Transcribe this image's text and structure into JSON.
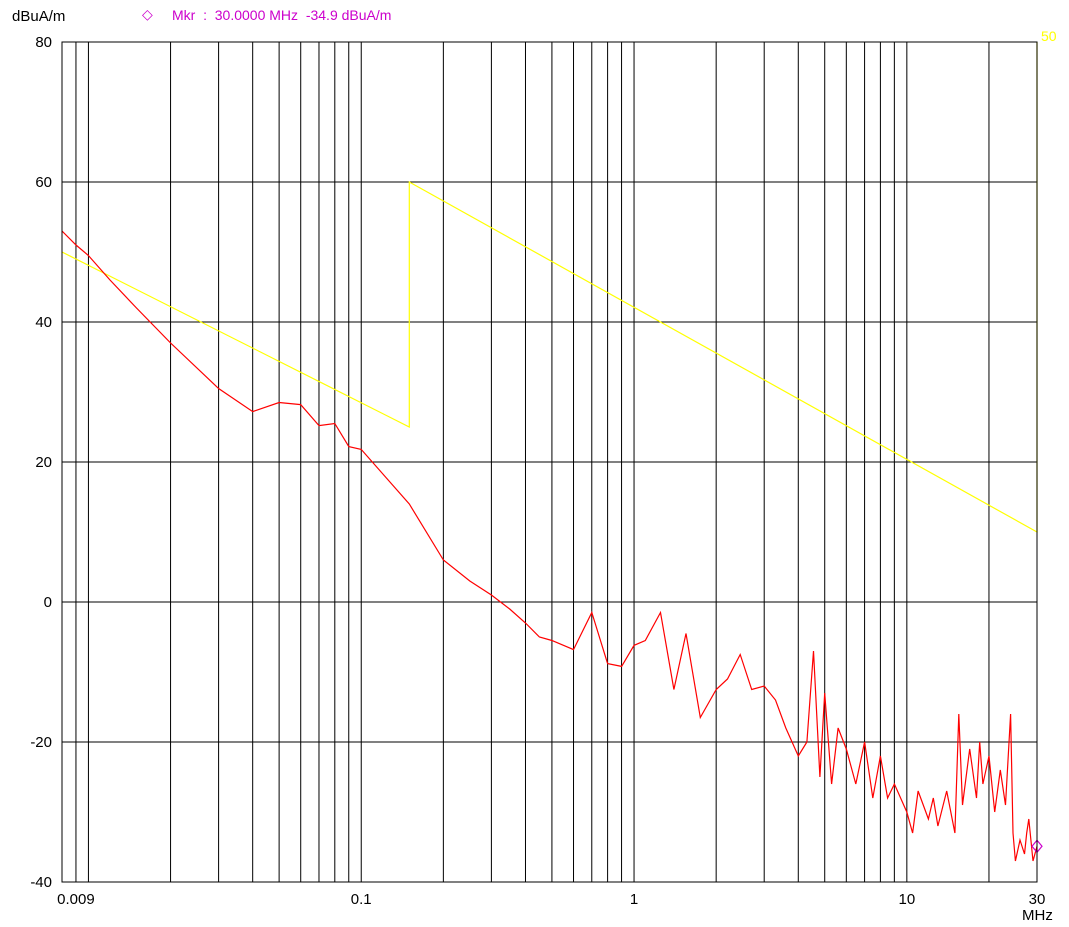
{
  "chart_data": {
    "type": "line",
    "y_unit_label": "dBuA/m",
    "x_unit_label": "MHz",
    "x_scale": "log",
    "xlim": [
      0.008,
      30
    ],
    "ylim": [
      -40,
      80
    ],
    "grid": true,
    "y_ticks": [
      80,
      60,
      40,
      20,
      0,
      -20,
      -40
    ],
    "x_tick_labels": [
      {
        "value": 0.009,
        "label": "0.009"
      },
      {
        "value": 0.1,
        "label": "0.1"
      },
      {
        "value": 1,
        "label": "1"
      },
      {
        "value": 10,
        "label": "10"
      },
      {
        "value": 30,
        "label": "30"
      }
    ],
    "marker": {
      "symbol": "◇",
      "text": "Mkr  :  30.0000 MHz  -34.9 dBuA/m",
      "x": 30,
      "y": -34.9,
      "color": "#cc00cc"
    },
    "series": [
      {
        "color": "#ffff00",
        "end_label": "50",
        "points": [
          [
            0.008,
            50
          ],
          [
            0.15,
            25
          ],
          [
            0.15,
            60
          ],
          [
            30,
            10
          ],
          [
            30,
            80
          ]
        ]
      },
      {
        "color": "#ff0000",
        "points": [
          [
            0.008,
            53
          ],
          [
            0.009,
            51
          ],
          [
            0.01,
            49.5
          ],
          [
            0.012,
            46
          ],
          [
            0.015,
            42
          ],
          [
            0.02,
            37
          ],
          [
            0.03,
            30.5
          ],
          [
            0.04,
            27.2
          ],
          [
            0.05,
            28.5
          ],
          [
            0.06,
            28.2
          ],
          [
            0.07,
            25.2
          ],
          [
            0.08,
            25.5
          ],
          [
            0.09,
            22.2
          ],
          [
            0.1,
            21.8
          ],
          [
            0.15,
            14
          ],
          [
            0.2,
            6
          ],
          [
            0.25,
            3
          ],
          [
            0.3,
            1
          ],
          [
            0.35,
            -1
          ],
          [
            0.4,
            -3
          ],
          [
            0.45,
            -5
          ],
          [
            0.5,
            -5.5
          ],
          [
            0.6,
            -6.8
          ],
          [
            0.7,
            -1.5
          ],
          [
            0.8,
            -8.8
          ],
          [
            0.9,
            -9.2
          ],
          [
            1.0,
            -6.2
          ],
          [
            1.1,
            -5.5
          ],
          [
            1.25,
            -1.5
          ],
          [
            1.4,
            -12.5
          ],
          [
            1.55,
            -4.5
          ],
          [
            1.75,
            -16.5
          ],
          [
            2.0,
            -12.5
          ],
          [
            2.2,
            -11
          ],
          [
            2.45,
            -7.5
          ],
          [
            2.7,
            -12.5
          ],
          [
            3.0,
            -12
          ],
          [
            3.3,
            -14
          ],
          [
            3.6,
            -18
          ],
          [
            4.0,
            -22
          ],
          [
            4.3,
            -20
          ],
          [
            4.55,
            -7
          ],
          [
            4.8,
            -25
          ],
          [
            5.0,
            -13
          ],
          [
            5.3,
            -26
          ],
          [
            5.6,
            -18
          ],
          [
            6.0,
            -21
          ],
          [
            6.5,
            -26
          ],
          [
            7.0,
            -20
          ],
          [
            7.5,
            -28
          ],
          [
            8.0,
            -22
          ],
          [
            8.5,
            -28
          ],
          [
            9.0,
            -26
          ],
          [
            10.0,
            -30
          ],
          [
            10.5,
            -33
          ],
          [
            11.0,
            -27
          ],
          [
            12.0,
            -31
          ],
          [
            12.5,
            -28
          ],
          [
            13.0,
            -32
          ],
          [
            14.0,
            -27
          ],
          [
            15.0,
            -33
          ],
          [
            15.5,
            -16
          ],
          [
            16.0,
            -29
          ],
          [
            17.0,
            -21
          ],
          [
            18.0,
            -28
          ],
          [
            18.5,
            -20
          ],
          [
            19.0,
            -26
          ],
          [
            20.0,
            -22
          ],
          [
            21.0,
            -30
          ],
          [
            22.0,
            -24
          ],
          [
            23.0,
            -29
          ],
          [
            24.0,
            -16
          ],
          [
            24.5,
            -33
          ],
          [
            25.0,
            -37
          ],
          [
            26.0,
            -34
          ],
          [
            27.0,
            -36
          ],
          [
            27.5,
            -33
          ],
          [
            28.0,
            -31
          ],
          [
            29.0,
            -37
          ],
          [
            30.0,
            -34.9
          ]
        ]
      }
    ]
  }
}
